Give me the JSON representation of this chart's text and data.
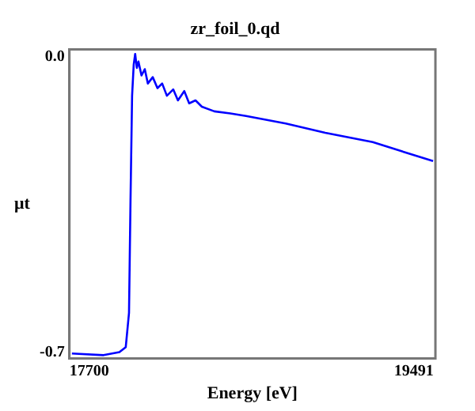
{
  "chart_data": {
    "type": "line",
    "title": "zr_foil_0.qd",
    "xlabel": "Energy [eV]",
    "ylabel": "μt",
    "x": [
      17604,
      17779,
      17866,
      17901,
      17919,
      17927,
      17936,
      17945,
      17953,
      17962,
      17971,
      17988,
      18006,
      18023,
      18050,
      18076,
      18102,
      18128,
      18163,
      18189,
      18224,
      18251,
      18286,
      18321,
      18390,
      18478,
      18565,
      18784,
      19002,
      19264,
      19597
    ],
    "series": [
      {
        "color": "#0000ff",
        "values": [
          -0.703,
          -0.707,
          -0.7,
          -0.688,
          -0.607,
          -0.35,
          -0.092,
          -0.018,
          0.007,
          -0.026,
          -0.011,
          -0.044,
          -0.029,
          -0.063,
          -0.048,
          -0.074,
          -0.063,
          -0.092,
          -0.077,
          -0.103,
          -0.081,
          -0.11,
          -0.103,
          -0.118,
          -0.129,
          -0.134,
          -0.14,
          -0.158,
          -0.18,
          -0.202,
          -0.247
        ]
      }
    ],
    "xlim": [
      17590,
      19610
    ],
    "xticks": [
      17700,
      19491
    ],
    "ylim": [
      -0.715,
      0.018
    ],
    "yticks": [
      -0.7,
      {
        "value": 0,
        "label": "0.0"
      }
    ],
    "grid": false,
    "legend": false,
    "marker": "none",
    "line_style": "solid"
  }
}
